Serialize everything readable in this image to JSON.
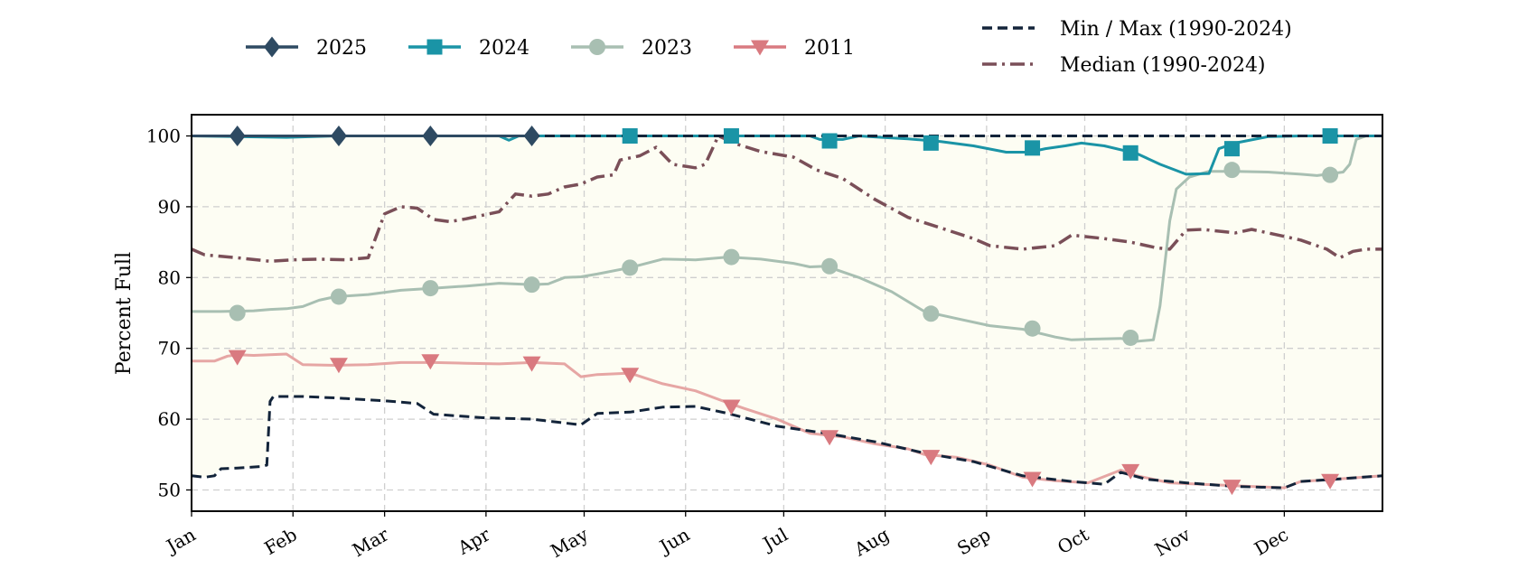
{
  "chart_data": {
    "type": "line",
    "title": "",
    "xlabel": "",
    "ylabel": "Percent Full",
    "ylim": [
      47,
      103
    ],
    "yticks": [
      50,
      60,
      70,
      80,
      90,
      100
    ],
    "month_labels": [
      "Jan",
      "Feb",
      "Mar",
      "Apr",
      "May",
      "Jun",
      "Jul",
      "Aug",
      "Sep",
      "Oct",
      "Nov",
      "Dec"
    ],
    "grid": true,
    "legend": [
      {
        "label": "2025",
        "series": "2025"
      },
      {
        "label": "2024",
        "series": "2024"
      },
      {
        "label": "2023",
        "series": "2023"
      },
      {
        "label": "2011",
        "series": "2011"
      },
      {
        "label": "Min / Max (1990-2024)",
        "series": "minmax"
      },
      {
        "label": "Median (1990-2024)",
        "series": "median"
      }
    ],
    "colors": {
      "2025": "#2e4a62",
      "2024": "#1a94a6",
      "2023": "#a8bfb2",
      "2011": "#d97a80",
      "2011_line": "#e6a6a4",
      "minmax": "#13243a",
      "median": "#7a4f58",
      "band": "#fdfdf3"
    },
    "series": [
      {
        "key": "max",
        "points": [
          [
            1,
            100
          ],
          [
            365,
            100
          ]
        ]
      },
      {
        "key": "min",
        "points": [
          [
            1,
            52
          ],
          [
            5,
            51.8
          ],
          [
            8,
            52
          ],
          [
            10,
            53
          ],
          [
            15,
            53.1
          ],
          [
            22,
            53.3
          ],
          [
            24,
            53.5
          ],
          [
            25,
            62.5
          ],
          [
            26,
            63.2
          ],
          [
            35,
            63.2
          ],
          [
            45,
            63
          ],
          [
            60,
            62.6
          ],
          [
            70,
            62.2
          ],
          [
            75,
            60.7
          ],
          [
            90,
            60.2
          ],
          [
            105,
            60
          ],
          [
            120,
            59.2
          ],
          [
            125,
            60.8
          ],
          [
            135,
            61
          ],
          [
            145,
            61.7
          ],
          [
            155,
            61.8
          ],
          [
            165,
            60.8
          ],
          [
            180,
            59
          ],
          [
            195,
            58
          ],
          [
            210,
            56.8
          ],
          [
            225,
            55.2
          ],
          [
            240,
            54
          ],
          [
            255,
            52
          ],
          [
            270,
            51.2
          ],
          [
            280,
            50.8
          ],
          [
            285,
            52.5
          ],
          [
            293,
            51.5
          ],
          [
            305,
            51
          ],
          [
            320,
            50.5
          ],
          [
            335,
            50.3
          ],
          [
            340,
            51.2
          ],
          [
            350,
            51.5
          ],
          [
            365,
            52
          ]
        ]
      },
      {
        "key": "median",
        "points": [
          [
            1,
            84
          ],
          [
            5,
            83.2
          ],
          [
            15,
            82.8
          ],
          [
            25,
            82.3
          ],
          [
            32,
            82.5
          ],
          [
            40,
            82.6
          ],
          [
            48,
            82.5
          ],
          [
            55,
            82.8
          ],
          [
            60,
            89
          ],
          [
            65,
            90
          ],
          [
            70,
            89.8
          ],
          [
            75,
            88.2
          ],
          [
            80,
            87.9
          ],
          [
            85,
            88.3
          ],
          [
            95,
            89.3
          ],
          [
            100,
            91.8
          ],
          [
            105,
            91.5
          ],
          [
            110,
            91.8
          ],
          [
            115,
            92.8
          ],
          [
            120,
            93.2
          ],
          [
            125,
            94.2
          ],
          [
            130,
            94.5
          ],
          [
            132,
            96.6
          ],
          [
            138,
            97.2
          ],
          [
            143,
            98.4
          ],
          [
            148,
            96
          ],
          [
            155,
            95.5
          ],
          [
            158,
            96
          ],
          [
            162,
            100
          ],
          [
            168,
            98.8
          ],
          [
            175,
            97.8
          ],
          [
            185,
            97
          ],
          [
            192,
            95.2
          ],
          [
            200,
            94
          ],
          [
            210,
            91
          ],
          [
            220,
            88.5
          ],
          [
            230,
            87
          ],
          [
            240,
            85.5
          ],
          [
            245,
            84.5
          ],
          [
            255,
            84
          ],
          [
            265,
            84.5
          ],
          [
            270,
            86
          ],
          [
            280,
            85.5
          ],
          [
            288,
            85
          ],
          [
            296,
            84.2
          ],
          [
            300,
            84
          ],
          [
            305,
            86.7
          ],
          [
            310,
            86.8
          ],
          [
            320,
            86.3
          ],
          [
            325,
            86.8
          ],
          [
            335,
            85.8
          ],
          [
            340,
            85.3
          ],
          [
            348,
            84
          ],
          [
            352,
            82.8
          ],
          [
            356,
            83.7
          ],
          [
            360,
            84
          ],
          [
            365,
            84
          ]
        ]
      },
      {
        "key": "2023",
        "points": [
          [
            1,
            75.2
          ],
          [
            10,
            75.2
          ],
          [
            20,
            75.3
          ],
          [
            25,
            75.5
          ],
          [
            30,
            75.6
          ],
          [
            35,
            75.9
          ],
          [
            40,
            76.8
          ],
          [
            45,
            77.3
          ],
          [
            55,
            77.6
          ],
          [
            65,
            78.2
          ],
          [
            75,
            78.5
          ],
          [
            85,
            78.8
          ],
          [
            95,
            79.2
          ],
          [
            105,
            79
          ],
          [
            110,
            79.1
          ],
          [
            115,
            80
          ],
          [
            120,
            80.1
          ],
          [
            125,
            80.5
          ],
          [
            135,
            81.4
          ],
          [
            145,
            82.6
          ],
          [
            155,
            82.5
          ],
          [
            165,
            82.9
          ],
          [
            175,
            82.6
          ],
          [
            185,
            82
          ],
          [
            190,
            81.5
          ],
          [
            195,
            81.6
          ],
          [
            205,
            80
          ],
          [
            215,
            78
          ],
          [
            225,
            75.2
          ],
          [
            235,
            74.2
          ],
          [
            245,
            73.2
          ],
          [
            255,
            72.7
          ],
          [
            265,
            71.6
          ],
          [
            270,
            71.2
          ],
          [
            276,
            71.3
          ],
          [
            285,
            71.4
          ],
          [
            290,
            71
          ],
          [
            295,
            71.2
          ],
          [
            297,
            76
          ],
          [
            300,
            88
          ],
          [
            302,
            92.5
          ],
          [
            306,
            94.2
          ],
          [
            312,
            95
          ],
          [
            320,
            95
          ],
          [
            330,
            94.9
          ],
          [
            340,
            94.6
          ],
          [
            345,
            94.4
          ],
          [
            353,
            94.9
          ],
          [
            355,
            96
          ],
          [
            357,
            99.5
          ],
          [
            360,
            100
          ],
          [
            365,
            100
          ]
        ]
      },
      {
        "key": "2011",
        "points": [
          [
            1,
            68.2
          ],
          [
            8,
            68.2
          ],
          [
            12,
            68.9
          ],
          [
            15,
            69.1
          ],
          [
            20,
            69
          ],
          [
            30,
            69.2
          ],
          [
            35,
            67.7
          ],
          [
            45,
            67.6
          ],
          [
            55,
            67.7
          ],
          [
            65,
            68
          ],
          [
            75,
            68
          ],
          [
            85,
            67.9
          ],
          [
            95,
            67.8
          ],
          [
            105,
            68
          ],
          [
            115,
            67.8
          ],
          [
            120,
            66
          ],
          [
            125,
            66.3
          ],
          [
            135,
            66.5
          ],
          [
            145,
            65
          ],
          [
            155,
            64
          ],
          [
            165,
            62.3
          ],
          [
            170,
            61.5
          ],
          [
            180,
            60
          ],
          [
            190,
            58
          ],
          [
            200,
            57.5
          ],
          [
            210,
            56.5
          ],
          [
            220,
            55.8
          ],
          [
            225,
            55
          ],
          [
            235,
            54.6
          ],
          [
            245,
            53.5
          ],
          [
            255,
            51.8
          ],
          [
            265,
            51.3
          ],
          [
            275,
            51
          ],
          [
            285,
            52.8
          ],
          [
            290,
            52
          ],
          [
            300,
            51
          ],
          [
            310,
            50.8
          ],
          [
            315,
            50.7
          ],
          [
            325,
            50.5
          ],
          [
            335,
            50.3
          ],
          [
            340,
            51.2
          ],
          [
            350,
            51.5
          ],
          [
            365,
            52
          ]
        ]
      },
      {
        "key": "2024",
        "points": [
          [
            1,
            100
          ],
          [
            30,
            99.8
          ],
          [
            45,
            100
          ],
          [
            95,
            100
          ],
          [
            98,
            99.4
          ],
          [
            101,
            100
          ],
          [
            190,
            100
          ],
          [
            193,
            99.5
          ],
          [
            200,
            99.5
          ],
          [
            205,
            100
          ],
          [
            212,
            99.8
          ],
          [
            220,
            99.6
          ],
          [
            230,
            99.2
          ],
          [
            240,
            98.6
          ],
          [
            250,
            97.7
          ],
          [
            257,
            97.7
          ],
          [
            262,
            98.2
          ],
          [
            268,
            98.6
          ],
          [
            273,
            99
          ],
          [
            280,
            98.6
          ],
          [
            290,
            97.5
          ],
          [
            297,
            96
          ],
          [
            305,
            94.6
          ],
          [
            312,
            94.7
          ],
          [
            315,
            98.2
          ],
          [
            320,
            99
          ],
          [
            330,
            99.9
          ],
          [
            340,
            100
          ],
          [
            365,
            100
          ]
        ]
      },
      {
        "key": "2025",
        "points": [
          [
            1,
            100
          ],
          [
            105,
            100
          ]
        ]
      }
    ],
    "markers": {
      "2025": [
        [
          15,
          100
        ],
        [
          46,
          100
        ],
        [
          74,
          100
        ],
        [
          105,
          100
        ]
      ],
      "2024": [
        [
          135,
          100
        ],
        [
          166,
          100
        ],
        [
          196,
          99.3
        ],
        [
          227,
          99
        ],
        [
          258,
          98.3
        ],
        [
          288,
          97.6
        ],
        [
          319,
          98.2
        ],
        [
          349,
          100
        ]
      ],
      "2023": [
        [
          15,
          75
        ],
        [
          46,
          77.3
        ],
        [
          74,
          78.5
        ],
        [
          105,
          79
        ],
        [
          135,
          81.4
        ],
        [
          166,
          82.9
        ],
        [
          196,
          81.6
        ],
        [
          227,
          74.9
        ],
        [
          258,
          72.8
        ],
        [
          288,
          71.5
        ],
        [
          319,
          95.2
        ],
        [
          349,
          94.5
        ]
      ],
      "2011": [
        [
          15,
          68.8
        ],
        [
          46,
          67.7
        ],
        [
          74,
          68.2
        ],
        [
          105,
          67.9
        ],
        [
          135,
          66.3
        ],
        [
          166,
          61.8
        ],
        [
          196,
          57.5
        ],
        [
          227,
          54.7
        ],
        [
          258,
          51.6
        ],
        [
          288,
          52.7
        ],
        [
          319,
          50.5
        ],
        [
          349,
          51.3
        ]
      ]
    }
  }
}
